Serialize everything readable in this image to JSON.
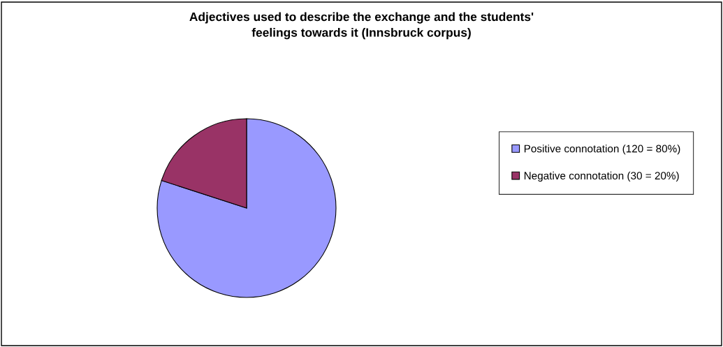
{
  "chart_data": {
    "type": "pie",
    "title": "Adjectives used to describe the exchange and the students'\nfeelings towards it (Innsbruck corpus)",
    "categories": [
      "Positive connotation (120 = 80%)",
      "Negative connotation (30 = 20%)"
    ],
    "values": [
      120,
      30
    ],
    "colors": [
      "#9999ff",
      "#993366"
    ],
    "legend": "right"
  }
}
